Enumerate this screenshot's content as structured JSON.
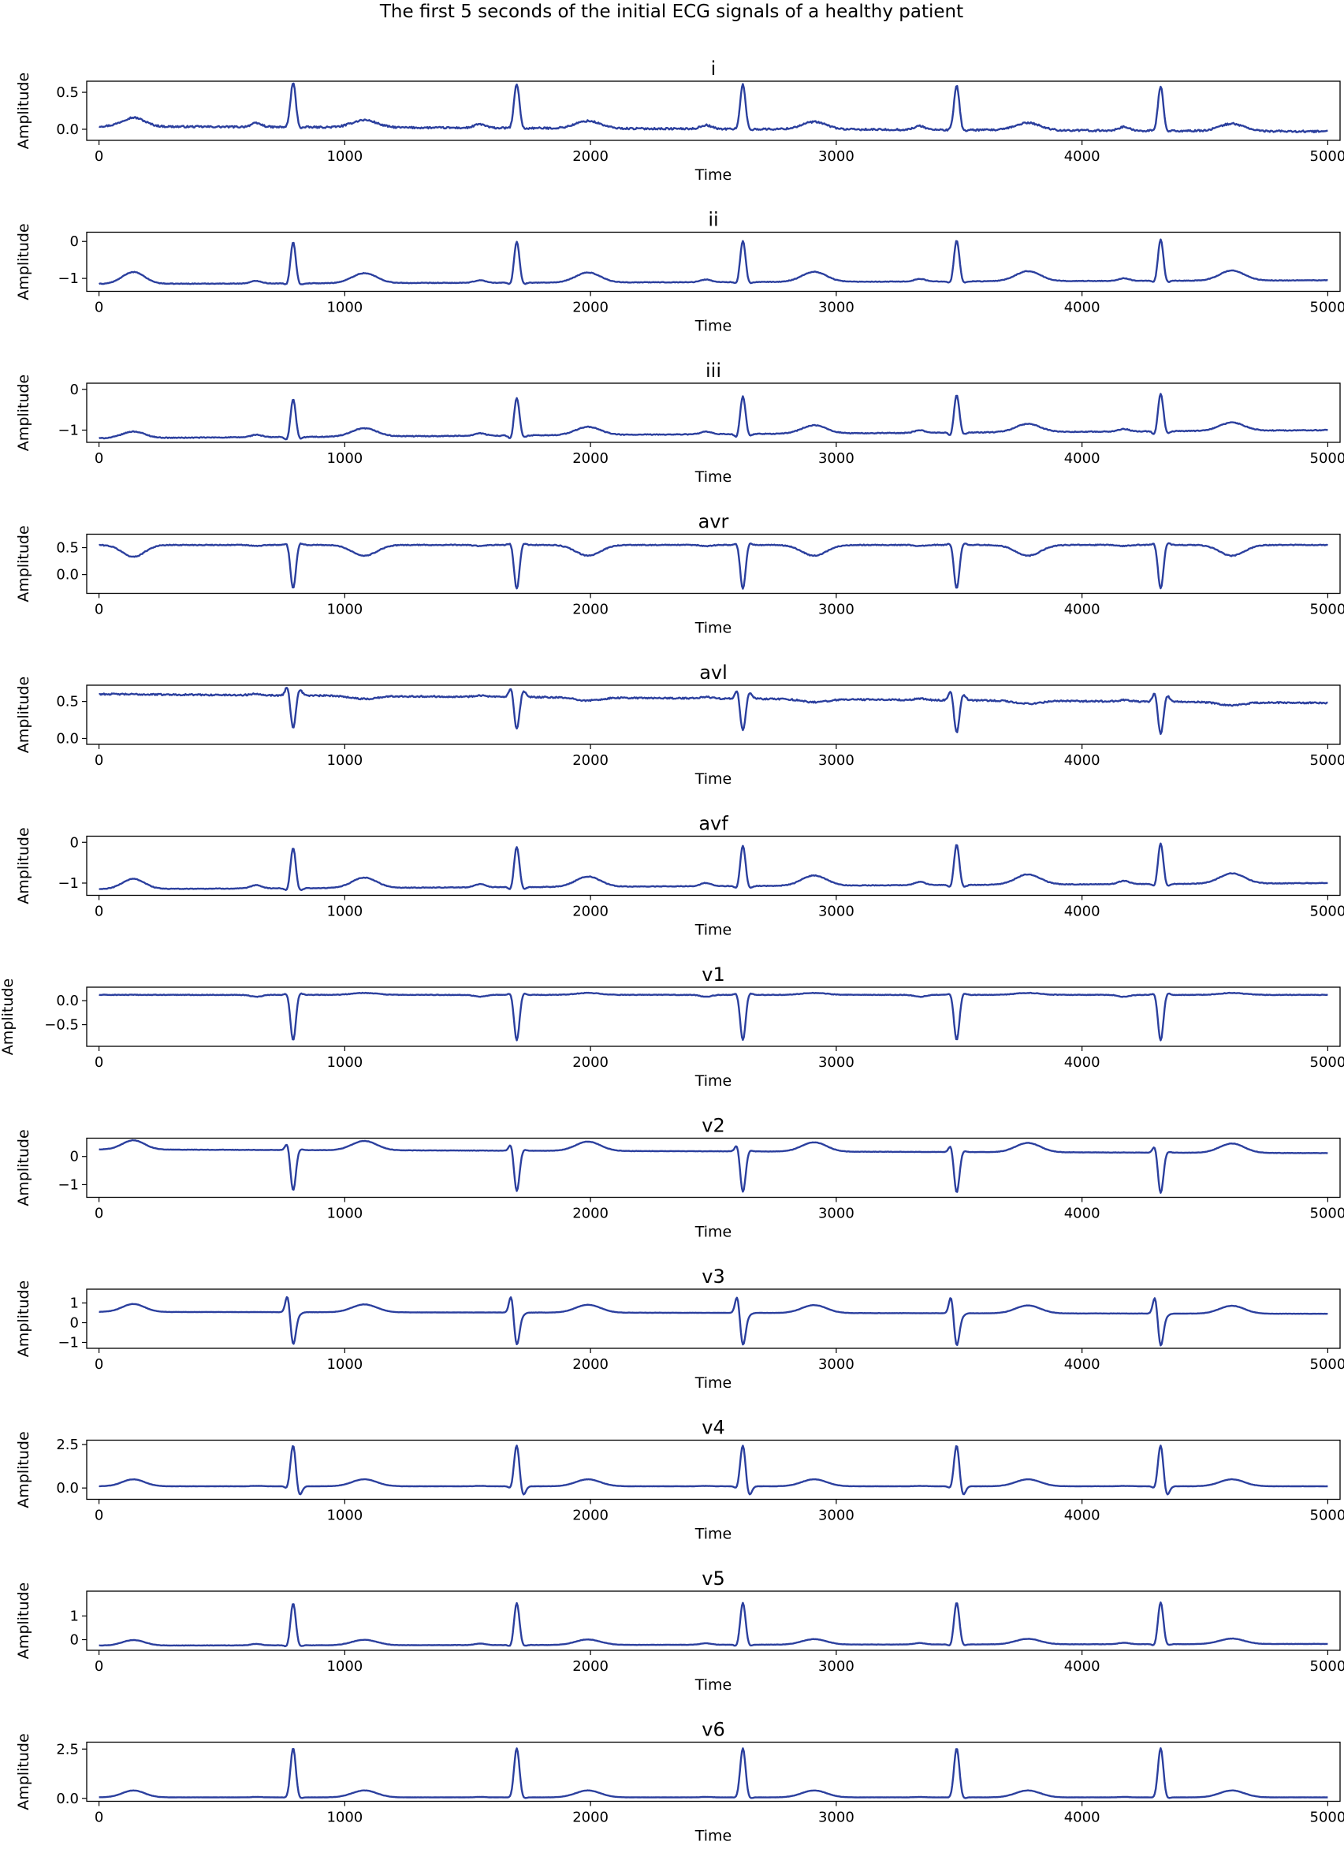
{
  "figure": {
    "title": "The first 5 seconds of the initial ECG signals of a healthy patient",
    "line_color": "#2b3f9e"
  },
  "chart_data": [
    {
      "type": "line",
      "title": "i",
      "xlabel": "Time",
      "ylabel": "Amplitude",
      "xlim": [
        -50,
        5050
      ],
      "ylim": [
        -0.15,
        0.65
      ],
      "xticks": [
        0,
        1000,
        2000,
        3000,
        4000,
        5000
      ],
      "yticks": [
        0.0,
        0.5
      ],
      "ytick_labels": [
        "0.0",
        "0.5"
      ],
      "grid": false,
      "series": [
        {
          "baseline": -0.02,
          "start": 0.04,
          "end": -0.03,
          "noise": 0.012,
          "beat_times": [
            790,
            1700,
            2620,
            3490,
            4320
          ],
          "r": 0.58,
          "q": -0.03,
          "s": -0.04,
          "t": 0.08,
          "p": 0.03,
          "t_lead": [
            [
              140,
              0.1
            ]
          ]
        }
      ]
    },
    {
      "type": "line",
      "title": "ii",
      "xlabel": "Time",
      "ylabel": "Amplitude",
      "xlim": [
        -50,
        5050
      ],
      "ylim": [
        -1.35,
        0.25
      ],
      "xticks": [
        0,
        1000,
        2000,
        3000,
        4000,
        5000
      ],
      "yticks": [
        -1,
        0
      ],
      "ytick_labels": [
        "−1",
        "0"
      ],
      "grid": false,
      "series": [
        {
          "baseline": -1.12,
          "start": -1.15,
          "end": -1.05,
          "noise": 0.008,
          "beat_times": [
            790,
            1700,
            2620,
            3490,
            4320
          ],
          "r": 0.0,
          "q": -1.2,
          "s": -1.18,
          "t": -0.85,
          "p": -1.05,
          "t_lead": [
            [
              140,
              -0.8
            ]
          ]
        }
      ]
    },
    {
      "type": "line",
      "title": "iii",
      "xlabel": "Time",
      "ylabel": "Amplitude",
      "xlim": [
        -50,
        5050
      ],
      "ylim": [
        -1.3,
        0.15
      ],
      "xticks": [
        0,
        1000,
        2000,
        3000,
        4000,
        5000
      ],
      "yticks": [
        -1,
        0
      ],
      "ytick_labels": [
        "−1",
        "0"
      ],
      "grid": false,
      "series": [
        {
          "baseline": -1.08,
          "start": -1.2,
          "end": -1.0,
          "noise": 0.01,
          "beat_times": [
            790,
            1700,
            2620,
            3490,
            4320
          ],
          "r": -0.15,
          "q": -1.2,
          "s": -1.15,
          "t": -0.88,
          "p": -1.02,
          "t_lead": [
            [
              140,
              -0.92
            ]
          ]
        }
      ]
    },
    {
      "type": "line",
      "title": "avr",
      "xlabel": "Time",
      "ylabel": "Amplitude",
      "xlim": [
        -50,
        5050
      ],
      "ylim": [
        -0.35,
        0.75
      ],
      "xticks": [
        0,
        1000,
        2000,
        3000,
        4000,
        5000
      ],
      "yticks": [
        0.0,
        0.5
      ],
      "ytick_labels": [
        "0.0",
        "0.5"
      ],
      "grid": false,
      "series": [
        {
          "baseline": 0.6,
          "start": 0.55,
          "end": 0.55,
          "noise": 0.008,
          "beat_times": [
            790,
            1700,
            2620,
            3490,
            4320
          ],
          "r": -0.22,
          "q": 0.66,
          "s": 0.65,
          "t": 0.4,
          "p": 0.58,
          "t_lead": [
            [
              140,
              0.38
            ]
          ]
        }
      ]
    },
    {
      "type": "line",
      "title": "avl",
      "xlabel": "Time",
      "ylabel": "Amplitude",
      "xlim": [
        -50,
        5050
      ],
      "ylim": [
        -0.08,
        0.72
      ],
      "xticks": [
        0,
        1000,
        2000,
        3000,
        4000,
        5000
      ],
      "yticks": [
        0.0,
        0.5
      ],
      "ytick_labels": [
        "0.0",
        "0.5"
      ],
      "grid": false,
      "series": [
        {
          "baseline": 0.5,
          "start": 0.6,
          "end": 0.48,
          "noise": 0.01,
          "beat_times": [
            790,
            1700,
            2620,
            3490,
            4320
          ],
          "r": 0.05,
          "q": 0.65,
          "s": 0.6,
          "t": 0.46,
          "p": 0.52,
          "t_lead": []
        }
      ]
    },
    {
      "type": "line",
      "title": "avf",
      "xlabel": "Time",
      "ylabel": "Amplitude",
      "xlim": [
        -50,
        5050
      ],
      "ylim": [
        -1.3,
        0.15
      ],
      "xticks": [
        0,
        1000,
        2000,
        3000,
        4000,
        5000
      ],
      "yticks": [
        -1,
        0
      ],
      "ytick_labels": [
        "−1",
        "0"
      ],
      "grid": false,
      "series": [
        {
          "baseline": -1.1,
          "start": -1.15,
          "end": -1.0,
          "noise": 0.008,
          "beat_times": [
            790,
            1700,
            2620,
            3490,
            4320
          ],
          "r": -0.1,
          "q": -1.2,
          "s": -1.18,
          "t": -0.85,
          "p": -1.02,
          "t_lead": [
            [
              140,
              -0.85
            ]
          ]
        }
      ]
    },
    {
      "type": "line",
      "title": "v1",
      "xlabel": "Time",
      "ylabel": "Amplitude",
      "xlim": [
        -50,
        5050
      ],
      "ylim": [
        -0.95,
        0.28
      ],
      "xticks": [
        0,
        1000,
        2000,
        3000,
        4000,
        5000
      ],
      "yticks": [
        -0.5,
        0.0
      ],
      "ytick_labels": [
        "−0.5",
        "0.0"
      ],
      "grid": false,
      "series": [
        {
          "baseline": 0.1,
          "start": 0.12,
          "end": 0.12,
          "noise": 0.006,
          "beat_times": [
            790,
            1700,
            2620,
            3490,
            4320
          ],
          "r": -0.85,
          "q": 0.16,
          "s": 0.15,
          "t": 0.14,
          "p": 0.06,
          "t_lead": []
        }
      ]
    },
    {
      "type": "line",
      "title": "v2",
      "xlabel": "Time",
      "ylabel": "Amplitude",
      "xlim": [
        -50,
        5050
      ],
      "ylim": [
        -1.45,
        0.65
      ],
      "xticks": [
        0,
        1000,
        2000,
        3000,
        4000,
        5000
      ],
      "yticks": [
        -1,
        0
      ],
      "ytick_labels": [
        "−1",
        "0"
      ],
      "grid": false,
      "series": [
        {
          "baseline": 0.15,
          "start": 0.25,
          "end": 0.12,
          "noise": 0.006,
          "beat_times": [
            790,
            1700,
            2620,
            3490,
            4320
          ],
          "r": -1.3,
          "q": 0.45,
          "s": 0.2,
          "t": 0.48,
          "p": 0.15,
          "t_lead": [
            [
              140,
              0.48
            ]
          ]
        }
      ]
    },
    {
      "type": "line",
      "title": "v3",
      "xlabel": "Time",
      "ylabel": "Amplitude",
      "xlim": [
        -50,
        5050
      ],
      "ylim": [
        -1.3,
        1.7
      ],
      "xticks": [
        0,
        1000,
        2000,
        3000,
        4000,
        5000
      ],
      "yticks": [
        -1,
        0,
        1
      ],
      "ytick_labels": [
        "−1",
        "0",
        "1"
      ],
      "grid": false,
      "series": [
        {
          "baseline": 0.5,
          "start": 0.55,
          "end": 0.45,
          "noise": 0.006,
          "beat_times": [
            790,
            1700,
            2620,
            3490,
            4320
          ],
          "r": -1.15,
          "q": 1.45,
          "s": 0.4,
          "t": 0.9,
          "p": 0.5,
          "t_lead": [
            [
              140,
              0.9
            ]
          ]
        }
      ]
    },
    {
      "type": "line",
      "title": "v4",
      "xlabel": "Time",
      "ylabel": "Amplitude",
      "xlim": [
        -50,
        5050
      ],
      "ylim": [
        -0.65,
        2.75
      ],
      "xticks": [
        0,
        1000,
        2000,
        3000,
        4000,
        5000
      ],
      "yticks": [
        0.0,
        2.5
      ],
      "ytick_labels": [
        "0.0",
        "2.5"
      ],
      "grid": false,
      "series": [
        {
          "baseline": 0.1,
          "start": 0.1,
          "end": 0.1,
          "noise": 0.006,
          "beat_times": [
            790,
            1700,
            2620,
            3490,
            4320
          ],
          "r": 2.5,
          "q": -0.1,
          "s": -0.5,
          "t": 0.5,
          "p": 0.12,
          "t_lead": [
            [
              140,
              0.5
            ]
          ]
        }
      ]
    },
    {
      "type": "line",
      "title": "v5",
      "xlabel": "Time",
      "ylabel": "Amplitude",
      "xlim": [
        -50,
        5050
      ],
      "ylim": [
        -0.45,
        2.05
      ],
      "xticks": [
        0,
        1000,
        2000,
        3000,
        4000,
        5000
      ],
      "yticks": [
        0,
        1
      ],
      "ytick_labels": [
        "0",
        "1"
      ],
      "grid": false,
      "series": [
        {
          "baseline": -0.18,
          "start": -0.25,
          "end": -0.18,
          "noise": 0.006,
          "beat_times": [
            790,
            1700,
            2620,
            3490,
            4320
          ],
          "r": 1.6,
          "q": -0.3,
          "s": -0.25,
          "t": 0.05,
          "p": -0.12,
          "t_lead": [
            [
              140,
              0.05
            ]
          ]
        }
      ]
    },
    {
      "type": "line",
      "title": "v6",
      "xlabel": "Time",
      "ylabel": "Amplitude",
      "xlim": [
        -50,
        5050
      ],
      "ylim": [
        -0.15,
        2.85
      ],
      "xticks": [
        0,
        1000,
        2000,
        3000,
        4000,
        5000
      ],
      "yticks": [
        0.0,
        2.5
      ],
      "ytick_labels": [
        "0.0",
        "2.5"
      ],
      "grid": false,
      "series": [
        {
          "baseline": 0.1,
          "start": 0.05,
          "end": 0.05,
          "noise": 0.005,
          "beat_times": [
            790,
            1700,
            2620,
            3490,
            4320
          ],
          "r": 2.6,
          "q": 0.05,
          "s": 0.02,
          "t": 0.45,
          "p": 0.12,
          "t_lead": [
            [
              140,
              0.45
            ]
          ]
        }
      ]
    }
  ]
}
